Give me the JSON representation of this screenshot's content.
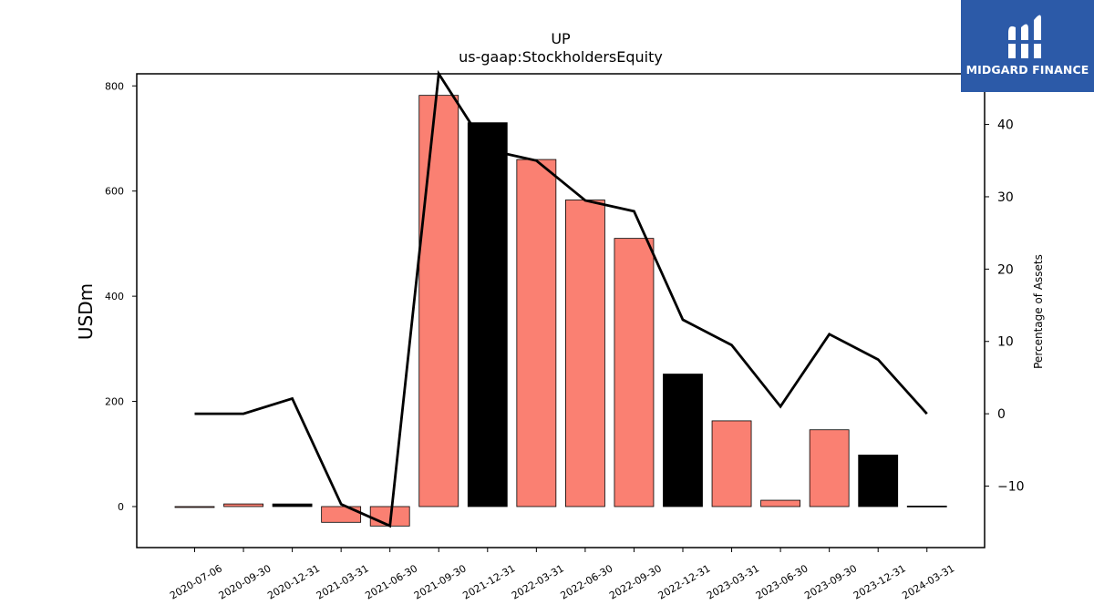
{
  "chart_data": {
    "type": "bar",
    "title": "UP",
    "subtitle": "us-gaap:StockholdersEquity",
    "ylabel": "USDm",
    "y2label": "Percentage of Assets",
    "categories": [
      "2020-07-06",
      "2020-09-30",
      "2020-12-31",
      "2021-03-31",
      "2021-06-30",
      "2021-09-30",
      "2021-12-31",
      "2022-03-31",
      "2022-06-30",
      "2022-09-30",
      "2022-12-31",
      "2023-03-31",
      "2023-06-30",
      "2023-09-30",
      "2023-12-31",
      "2024-03-31"
    ],
    "series": [
      {
        "values": [
          0,
          5,
          5,
          -30,
          -37,
          782,
          730,
          660,
          583,
          510,
          252,
          163,
          12,
          146,
          98,
          1
        ],
        "colors": [
          "#fa8072",
          "#fa8072",
          "#000000",
          "#fa8072",
          "#fa8072",
          "#fa8072",
          "#000000",
          "#fa8072",
          "#fa8072",
          "#fa8072",
          "#000000",
          "#fa8072",
          "#fa8072",
          "#fa8072",
          "#000000",
          "#000000"
        ]
      },
      {
        "axis": "right",
        "color": "#000000",
        "values": [
          0,
          0,
          2.1,
          -12.5,
          -15.5,
          47,
          36.5,
          35,
          29.5,
          28,
          13,
          9.5,
          1,
          11,
          7.5,
          0
        ]
      }
    ],
    "ylim": [
      -78,
      823
    ],
    "y2lim": [
      -18.5,
      47
    ],
    "yticks": [
      "0",
      "200",
      "400",
      "600",
      "800"
    ],
    "y2ticks": [
      "−10",
      "0",
      "10",
      "20",
      "30",
      "40"
    ],
    "grid": false,
    "legend": "none"
  },
  "logo": {
    "text": "MIDGARD FINANCE",
    "background": "#2c5aa8"
  }
}
